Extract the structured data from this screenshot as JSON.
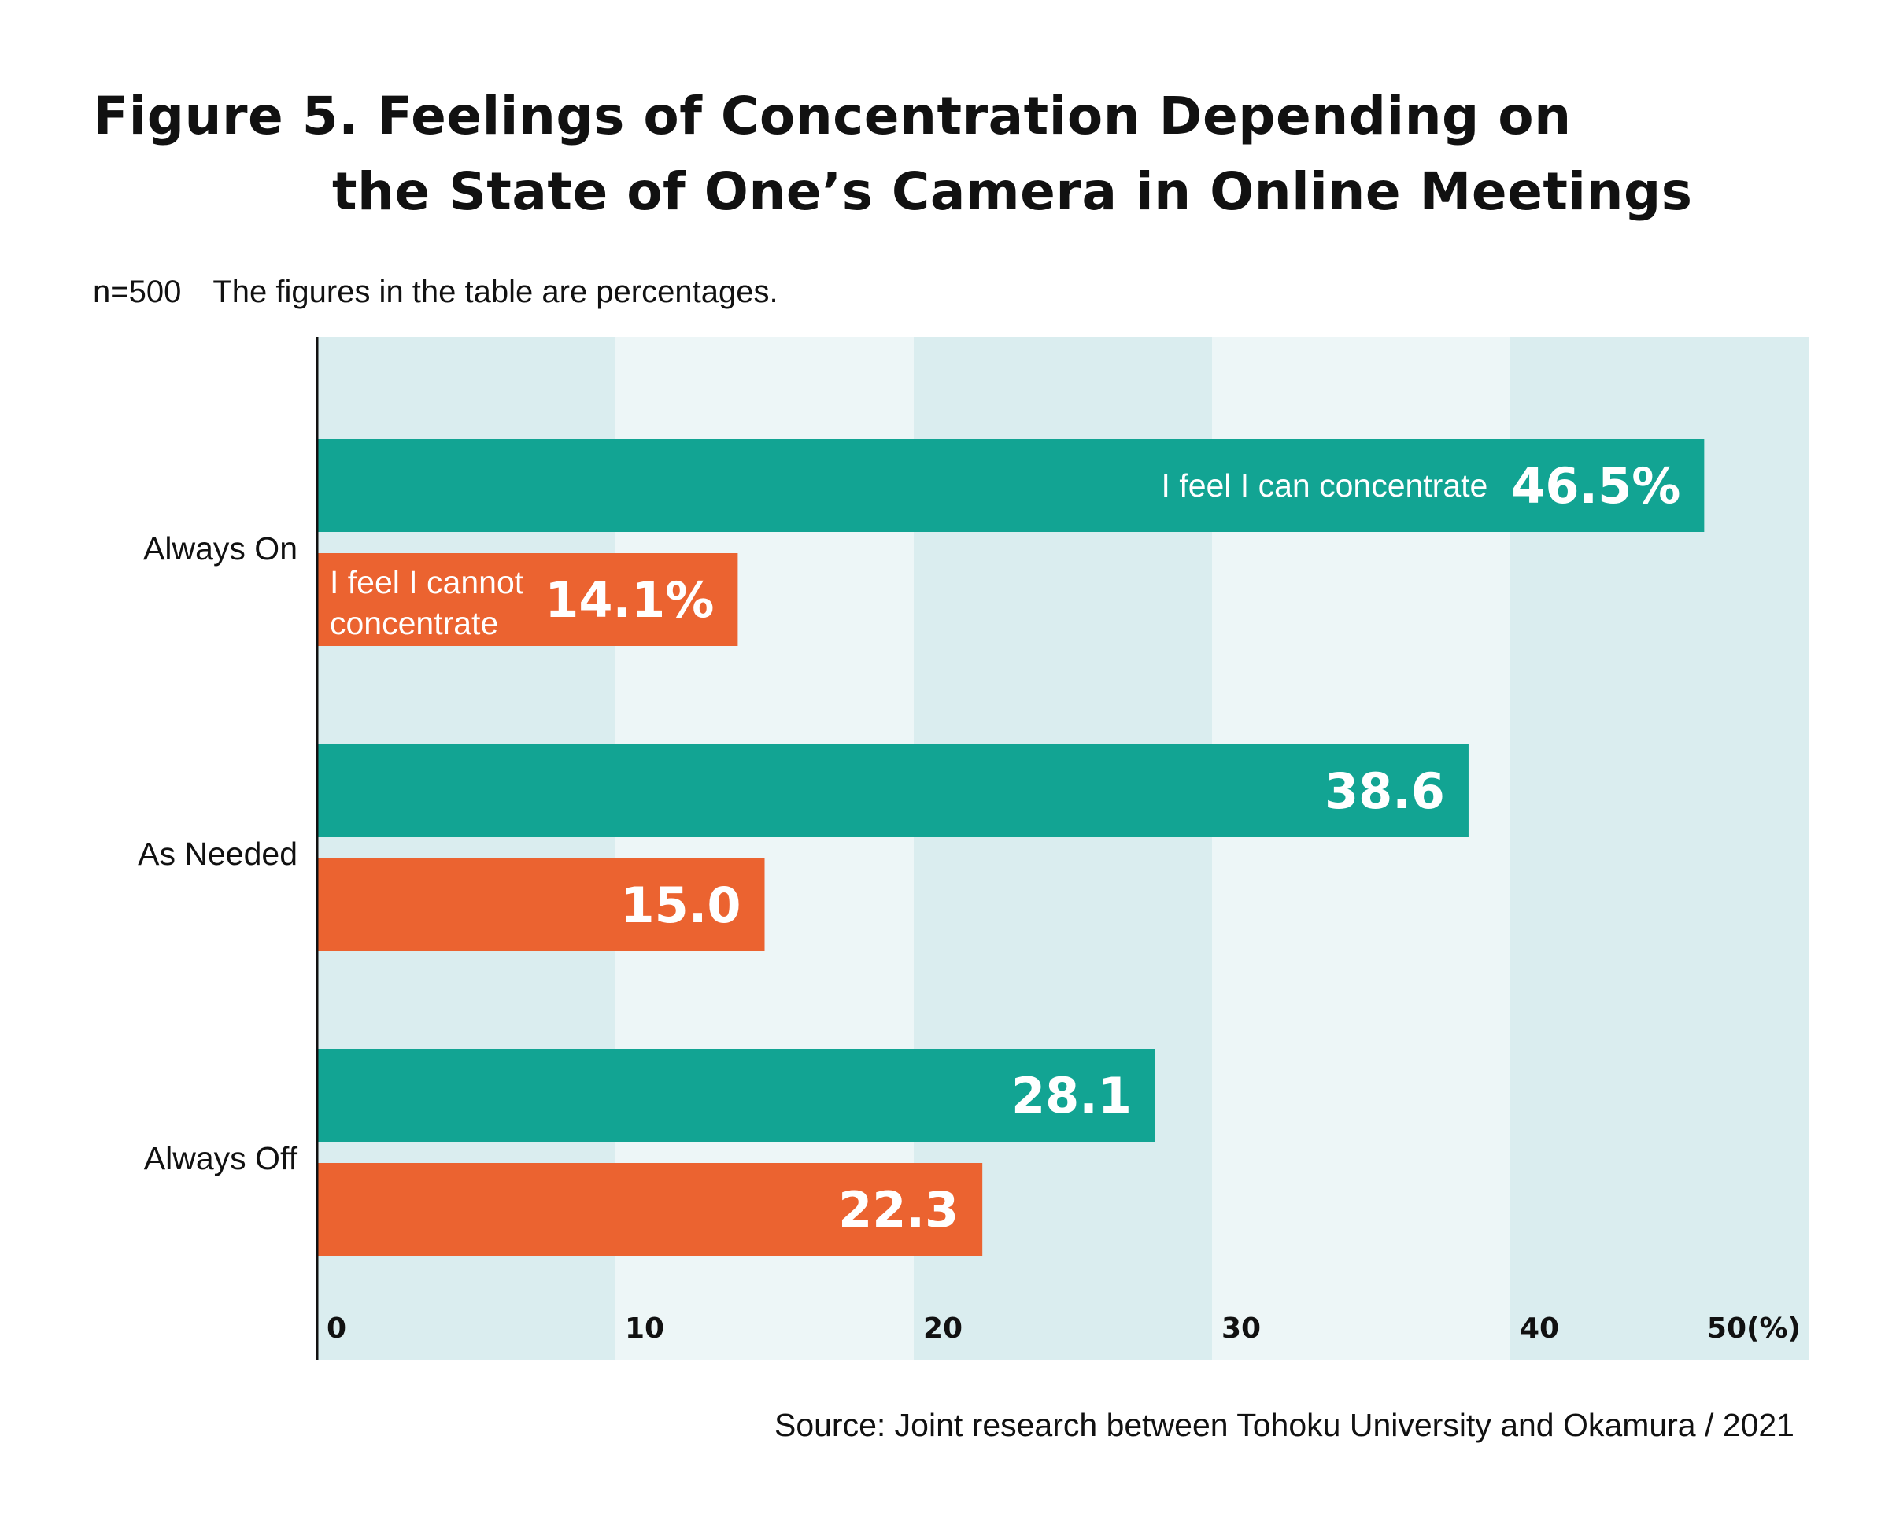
{
  "chart_data": {
    "type": "bar",
    "orientation": "horizontal",
    "title": "Figure 5. Feelings of Concentration Depending on",
    "title_line2": "the State of One’s Camera in Online Meetings",
    "note": "n=500　The figures in the table are percentages.",
    "source": "Source: Joint research between Tohoku University and Okamura / 2021",
    "categories": [
      "Always On",
      "As Needed",
      "Always Off"
    ],
    "series": [
      {
        "name": "I feel I can concentrate",
        "color": "#12a493",
        "values": [
          46.5,
          38.6,
          28.1
        ],
        "value_labels": [
          "46.5%",
          "38.6",
          "28.1"
        ]
      },
      {
        "name": "I feel I cannot concentrate",
        "color": "#eb6330",
        "name_lines": [
          "I feel I cannot",
          "concentrate"
        ],
        "values": [
          14.1,
          15.0,
          22.3
        ],
        "value_labels": [
          "14.1%",
          "15.0",
          "22.3"
        ]
      }
    ],
    "xlim": [
      0,
      50
    ],
    "ticks": [
      "0",
      "10",
      "20",
      "30",
      "40",
      "50(%)"
    ],
    "band_colors": [
      "#daedef",
      "#edf6f7"
    ],
    "grid": false,
    "legend": "inline labels on first category bars"
  }
}
